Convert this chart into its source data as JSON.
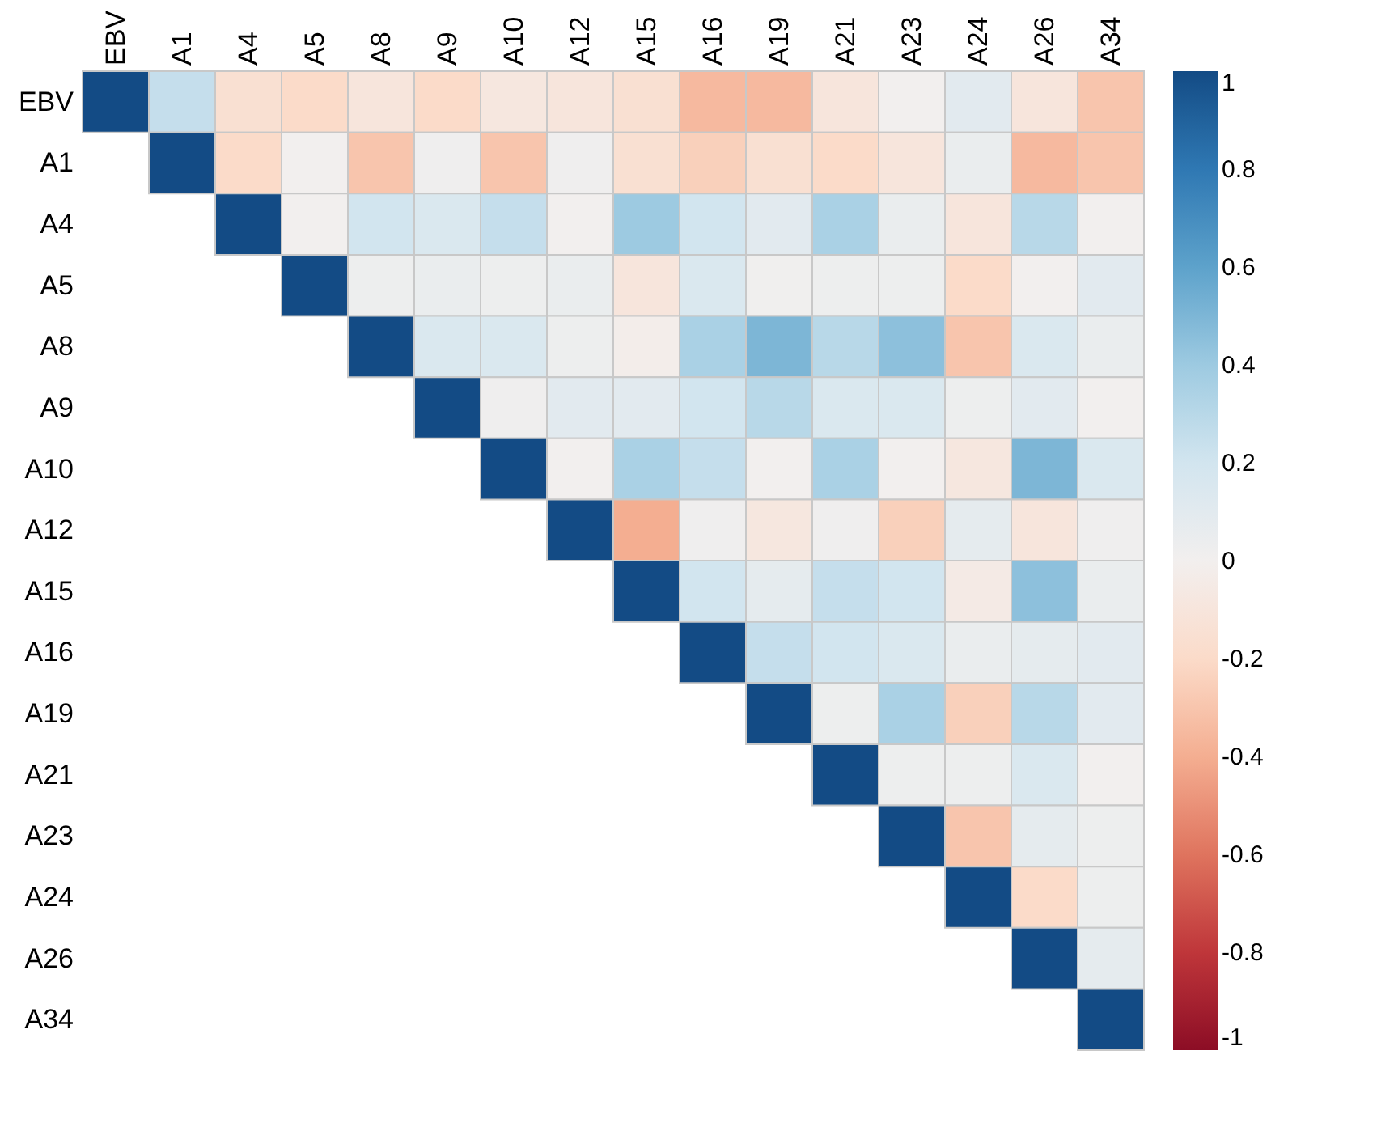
{
  "chart_data": {
    "type": "heatmap",
    "categories": [
      "EBV",
      "A1",
      "A4",
      "A5",
      "A8",
      "A9",
      "A10",
      "A12",
      "A15",
      "A16",
      "A19",
      "A21",
      "A23",
      "A24",
      "A26",
      "A34"
    ],
    "y_categories": [
      "EBV",
      "A1",
      "A4",
      "A5",
      "A8",
      "A9",
      "A10",
      "A12",
      "A15",
      "A16",
      "A19",
      "A21",
      "A23",
      "A24",
      "A26",
      "A34"
    ],
    "cells": [
      [
        1,
        0.25,
        -0.15,
        -0.2,
        -0.1,
        -0.2,
        -0.08,
        -0.1,
        -0.15,
        -0.35,
        -0.35,
        -0.1,
        0,
        0.1,
        -0.1,
        -0.3
      ],
      [
        null,
        1,
        -0.2,
        0,
        -0.3,
        0.02,
        -0.3,
        0.02,
        -0.15,
        -0.25,
        -0.15,
        -0.2,
        -0.1,
        0.05,
        -0.35,
        -0.3
      ],
      [
        null,
        null,
        1,
        0,
        0.2,
        0.15,
        0.25,
        0,
        0.4,
        0.2,
        0.1,
        0.35,
        0.05,
        -0.1,
        0.3,
        0
      ],
      [
        null,
        null,
        null,
        1,
        0.03,
        0.05,
        0.03,
        0.05,
        -0.1,
        0.15,
        0.01,
        0.03,
        0.03,
        -0.2,
        0,
        0.1
      ],
      [
        null,
        null,
        null,
        null,
        1,
        0.15,
        0.15,
        0.03,
        -0.02,
        0.35,
        0.5,
        0.3,
        0.45,
        -0.3,
        0.15,
        0.05
      ],
      [
        null,
        null,
        null,
        null,
        null,
        1,
        0.02,
        0.1,
        0.1,
        0.2,
        0.3,
        0.15,
        0.15,
        0.03,
        0.1,
        0
      ],
      [
        null,
        null,
        null,
        null,
        null,
        null,
        1,
        0,
        0.35,
        0.25,
        0,
        0.35,
        0,
        -0.08,
        0.5,
        0.15
      ],
      [
        null,
        null,
        null,
        null,
        null,
        null,
        null,
        1,
        -0.4,
        0.02,
        -0.08,
        0.02,
        -0.25,
        0.08,
        -0.1,
        0.02
      ],
      [
        null,
        null,
        null,
        null,
        null,
        null,
        null,
        null,
        1,
        0.2,
        0.08,
        0.25,
        0.2,
        -0.05,
        0.45,
        0.05
      ],
      [
        null,
        null,
        null,
        null,
        null,
        null,
        null,
        null,
        null,
        1,
        0.25,
        0.2,
        0.15,
        0.05,
        0.08,
        0.1
      ],
      [
        null,
        null,
        null,
        null,
        null,
        null,
        null,
        null,
        null,
        null,
        1,
        0.03,
        0.35,
        -0.25,
        0.3,
        0.1
      ],
      [
        null,
        null,
        null,
        null,
        null,
        null,
        null,
        null,
        null,
        null,
        null,
        1,
        0.03,
        0.03,
        0.15,
        0
      ],
      [
        null,
        null,
        null,
        null,
        null,
        null,
        null,
        null,
        null,
        null,
        null,
        null,
        1,
        -0.3,
        0.08,
        0.03
      ],
      [
        null,
        null,
        null,
        null,
        null,
        null,
        null,
        null,
        null,
        null,
        null,
        null,
        null,
        1,
        -0.2,
        0.03
      ],
      [
        null,
        null,
        null,
        null,
        null,
        null,
        null,
        null,
        null,
        null,
        null,
        null,
        null,
        null,
        1,
        0.08
      ],
      [
        null,
        null,
        null,
        null,
        null,
        null,
        null,
        null,
        null,
        null,
        null,
        null,
        null,
        null,
        null,
        1
      ]
    ],
    "clim": [
      -1,
      1
    ],
    "cticks": [
      -1,
      -0.8,
      -0.6,
      -0.4,
      -0.2,
      0,
      0.2,
      0.4,
      0.6,
      0.8,
      1
    ]
  }
}
